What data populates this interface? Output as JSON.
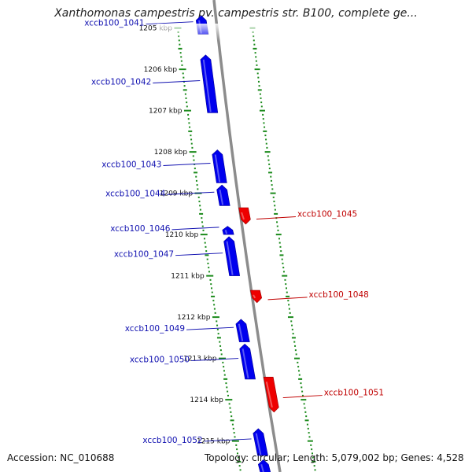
{
  "title": "Xanthomonas campestris pv. campestris str. B100, complete ge...",
  "footer": {
    "accession": "Accession: NC_010688",
    "info": "Topology: circular; Length: 5,079,002 bp; Genes: 4,528"
  },
  "colors": {
    "forward_gene": "#0000ee",
    "reverse_gene": "#ee0000",
    "tick": "#1a8a1a",
    "backbone": "#8c8c8c",
    "forward_label": "#1010b0",
    "reverse_label": "#c00000",
    "kbp_label": "#111111"
  },
  "map": {
    "kbp_labels": [
      {
        "text": "1205 kbp",
        "pos": 1205.0
      },
      {
        "text": "1206 kbp",
        "pos": 1206.0
      },
      {
        "text": "1207 kbp",
        "pos": 1207.0
      },
      {
        "text": "1208 kbp",
        "pos": 1208.0
      },
      {
        "text": "1209 kbp",
        "pos": 1209.0
      },
      {
        "text": "1210 kbp",
        "pos": 1210.0
      },
      {
        "text": "1211 kbp",
        "pos": 1211.0
      },
      {
        "text": "1212 kbp",
        "pos": 1212.0
      },
      {
        "text": "1213 kbp",
        "pos": 1213.0
      },
      {
        "text": "1214 kbp",
        "pos": 1214.0
      },
      {
        "text": "1215 kbp",
        "pos": 1215.0
      }
    ],
    "genes": [
      {
        "name": "xccb100_1041",
        "strand": "+",
        "start": 1204.7,
        "end": 1205.15
      },
      {
        "name": "xccb100_1042",
        "strand": "+",
        "start": 1205.65,
        "end": 1207.05
      },
      {
        "name": "xccb100_1043",
        "strand": "+",
        "start": 1207.95,
        "end": 1208.75
      },
      {
        "name": "xccb100_1044",
        "strand": "+",
        "start": 1208.8,
        "end": 1209.3
      },
      {
        "name": "xccb100_1045",
        "strand": "-",
        "start": 1209.35,
        "end": 1209.75
      },
      {
        "name": "xccb100_1046",
        "strand": "+",
        "start": 1209.8,
        "end": 1210.0
      },
      {
        "name": "xccb100_1047",
        "strand": "+",
        "start": 1210.05,
        "end": 1211.0
      },
      {
        "name": "xccb100_1048",
        "strand": "-",
        "start": 1211.35,
        "end": 1211.65
      },
      {
        "name": "xccb100_1049",
        "strand": "+",
        "start": 1212.05,
        "end": 1212.6
      },
      {
        "name": "xccb100_1050",
        "strand": "+",
        "start": 1212.65,
        "end": 1213.5
      },
      {
        "name": "xccb100_1051",
        "strand": "-",
        "start": 1213.45,
        "end": 1214.3
      },
      {
        "name": "xccb100_1052",
        "strand": "+",
        "start": 1214.7,
        "end": 1215.35
      },
      {
        "name": "",
        "strand": "+",
        "start": 1215.45,
        "end": 1215.8
      }
    ],
    "view": {
      "start": 1204.55,
      "end": 1215.8
    }
  }
}
